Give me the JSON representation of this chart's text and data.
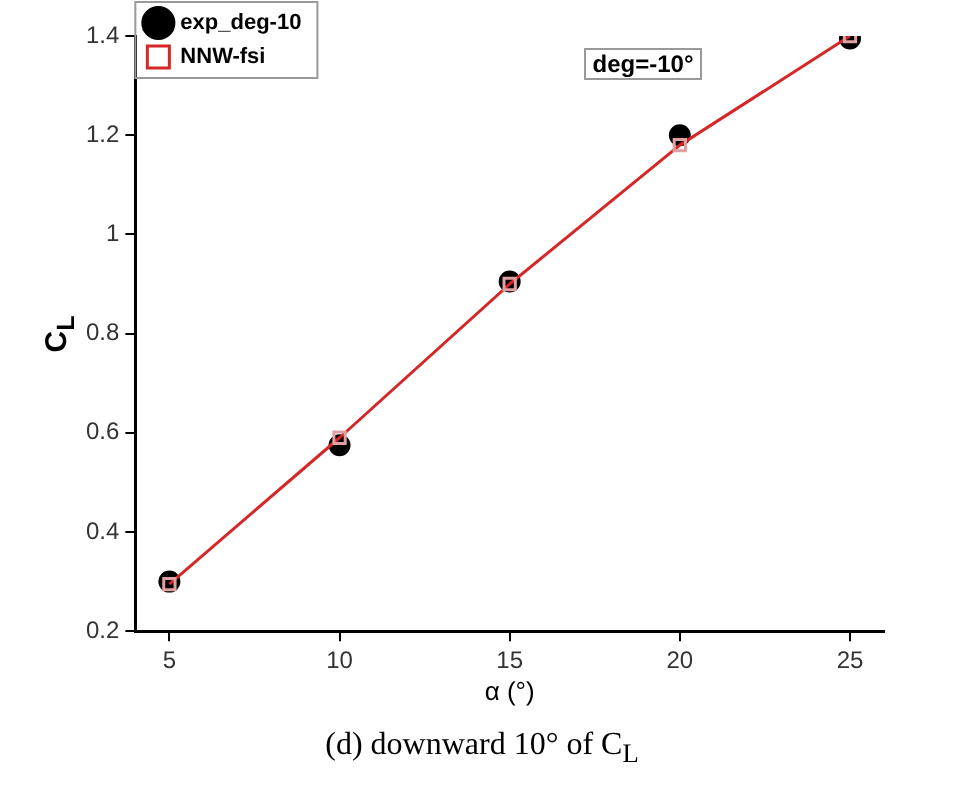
{
  "chart_data": {
    "type": "line",
    "xlabel": "α (°)",
    "ylabel": "C$_{L}$",
    "x": [
      5,
      10,
      15,
      20,
      25
    ],
    "series": [
      {
        "name": "exp_deg-10",
        "type": "scatter",
        "color": "#000000",
        "marker": "circle",
        "values": [
          0.3,
          0.575,
          0.905,
          1.2,
          1.395
        ]
      },
      {
        "name": "NNW-fsi",
        "color": "#d62728",
        "marker": "square",
        "line_style": "solid",
        "values": [
          0.295,
          0.59,
          0.9,
          1.18,
          1.4
        ]
      }
    ],
    "xlim": [
      4,
      26
    ],
    "xticks": [
      5,
      10,
      15,
      20,
      25
    ],
    "ylim": [
      0.2,
      1.4
    ],
    "yticks": [
      0.2,
      0.4,
      0.6,
      0.8,
      1,
      1.2,
      1.4
    ],
    "grid": false,
    "legend": "top left",
    "annotations": [
      "deg=-10°",
      "(d) downward 10° of C$_{L}$"
    ]
  }
}
